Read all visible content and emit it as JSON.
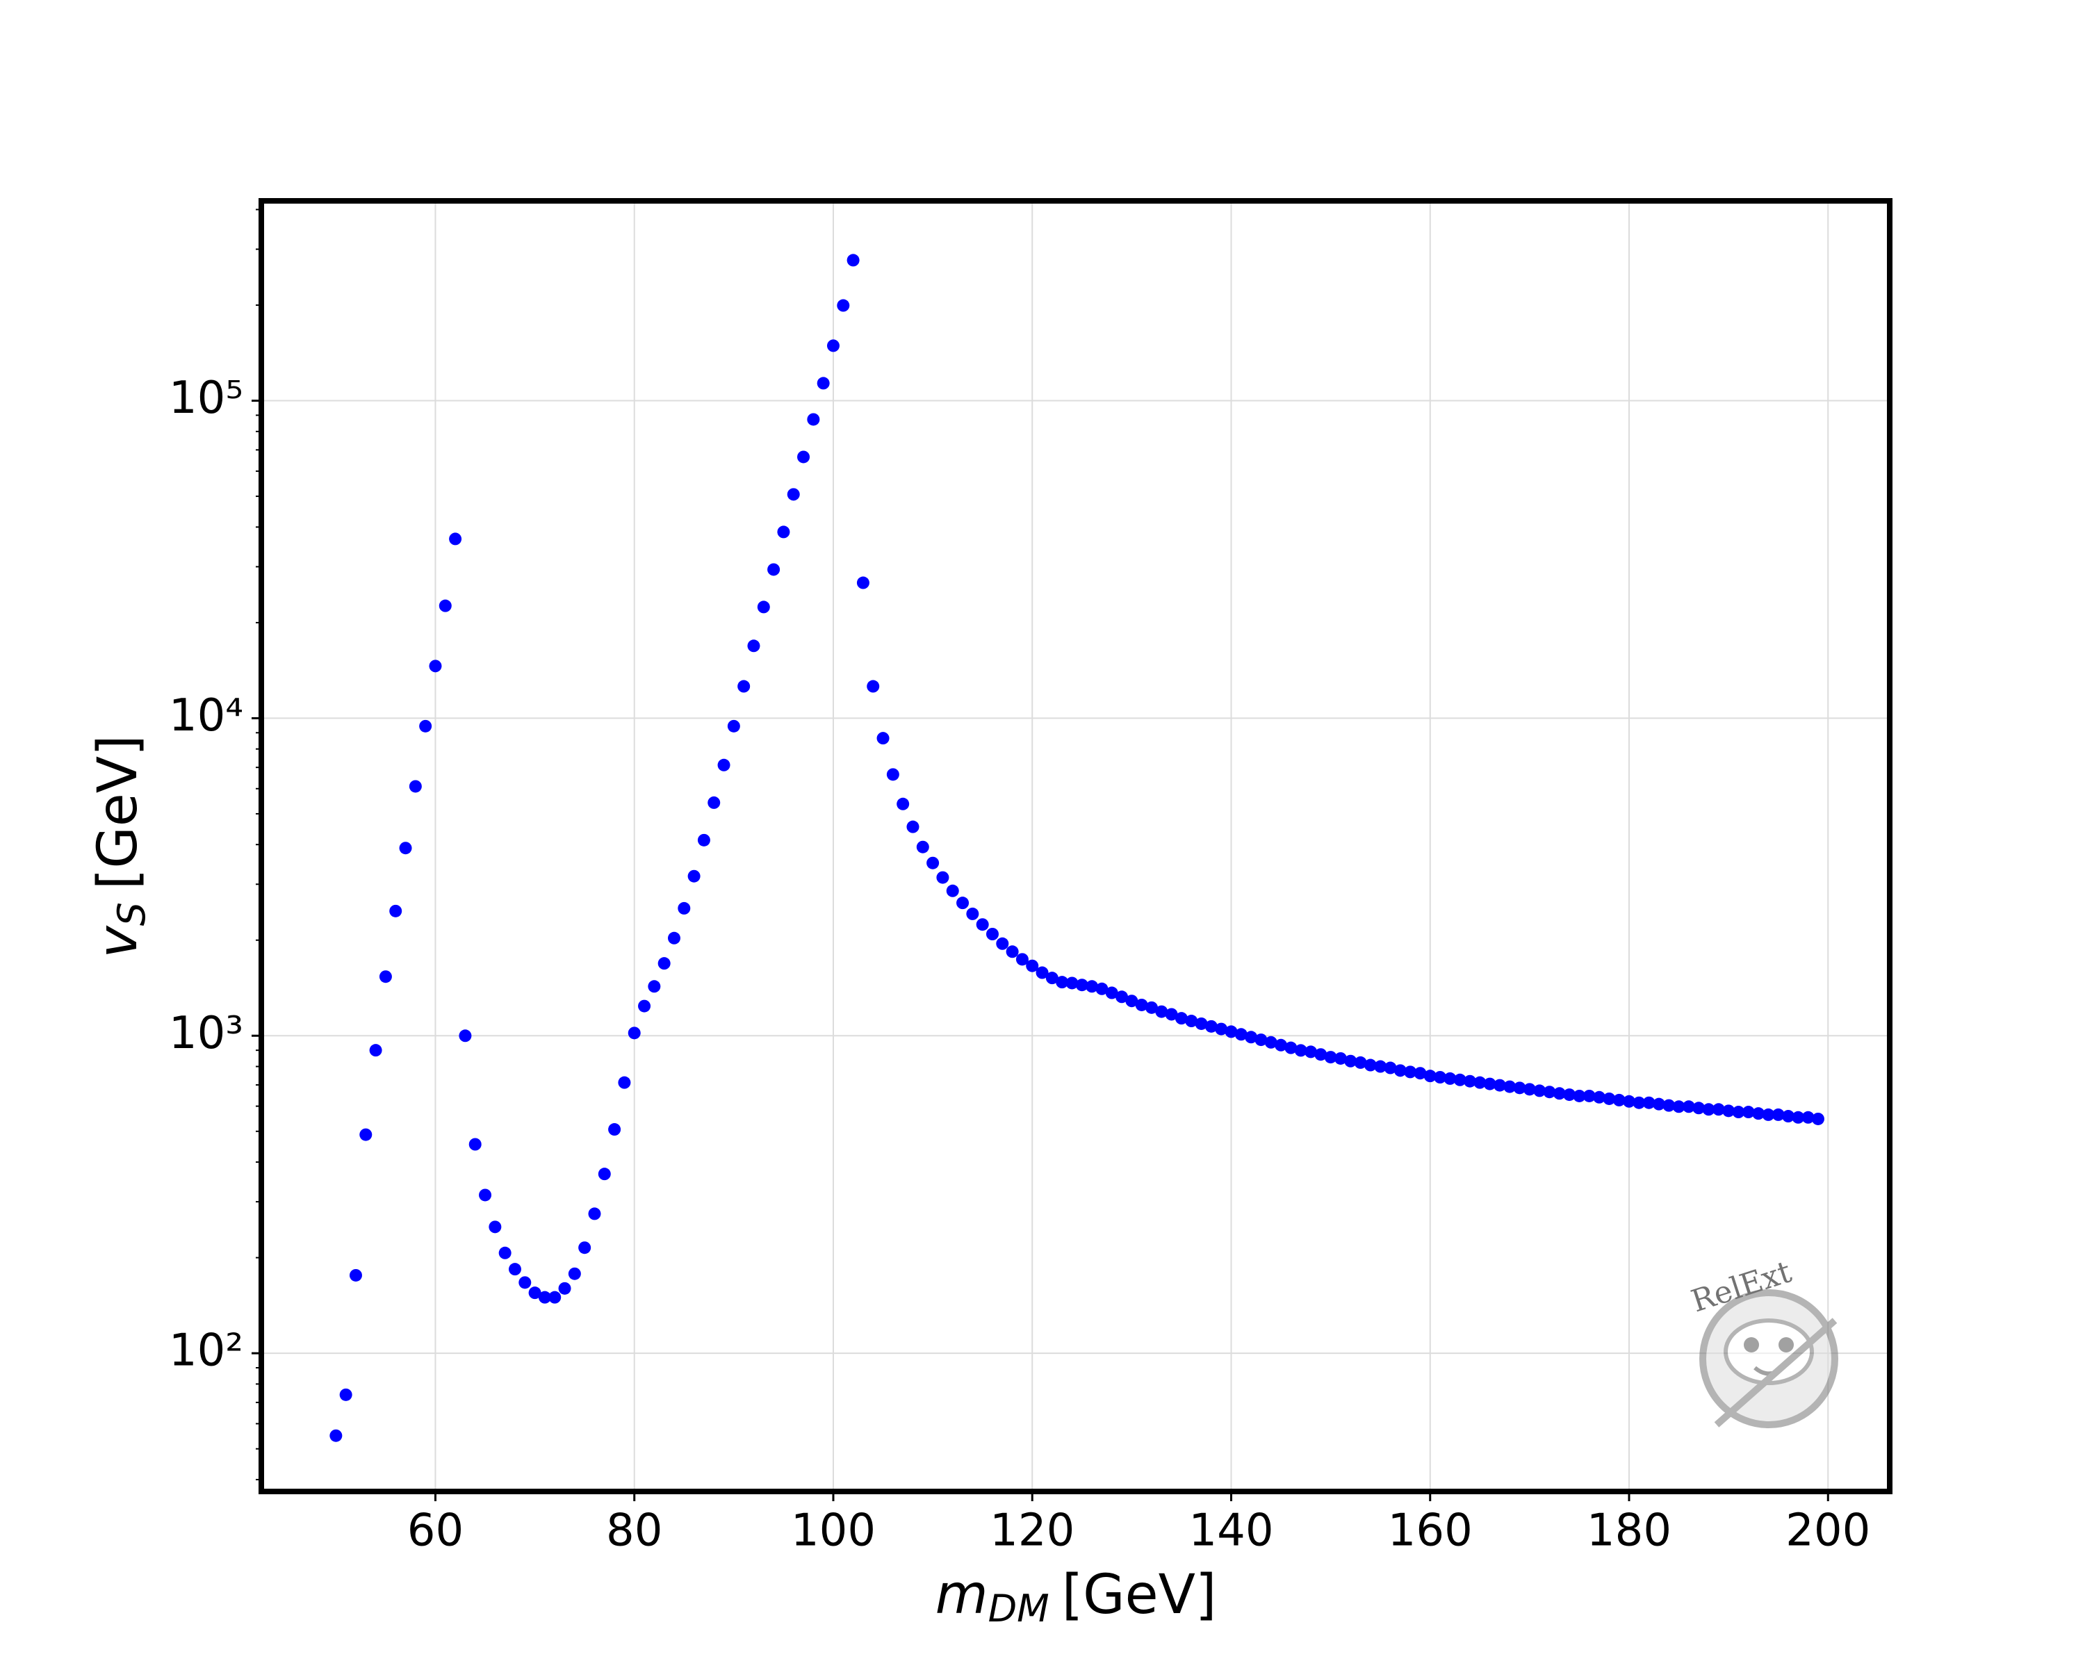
{
  "chart_data": {
    "type": "scatter",
    "x_label": {
      "symbol": "m",
      "subscript": "DM",
      "unit": "[GeV]"
    },
    "y_label": {
      "symbol": "v",
      "subscript": "S",
      "unit": "[GeV]"
    },
    "watermark": "RelExt",
    "color": "#0000ff",
    "log_y": true,
    "grid": true,
    "xlim": [
      42.5,
      206.2
    ],
    "ylim": [
      36.7,
      426000
    ],
    "xticks": [
      60,
      80,
      100,
      120,
      140,
      160,
      180,
      200
    ],
    "yticks": [
      {
        "value": 100,
        "label": "10²"
      },
      {
        "value": 1000,
        "label": "10³"
      },
      {
        "value": 10000,
        "label": "10⁴"
      },
      {
        "value": 100000,
        "label": "10⁵"
      }
    ],
    "x": [
      50,
      51,
      52,
      53,
      54,
      55,
      56,
      57,
      58,
      59,
      60,
      61,
      62,
      63,
      64,
      65,
      66,
      67,
      68,
      69,
      70,
      71,
      72,
      73,
      74,
      75,
      76,
      77,
      78,
      79,
      80,
      81,
      82,
      83,
      84,
      85,
      86,
      87,
      88,
      89,
      90,
      91,
      92,
      93,
      94,
      95,
      96,
      97,
      98,
      99,
      100,
      101,
      102,
      103,
      104,
      105,
      106,
      107,
      108,
      109,
      110,
      111,
      112,
      113,
      114,
      115,
      116,
      117,
      118,
      119,
      120,
      121,
      122,
      123,
      124,
      125,
      126,
      127,
      128,
      129,
      130,
      131,
      132,
      133,
      134,
      135,
      136,
      137,
      138,
      139,
      140,
      141,
      142,
      143,
      144,
      145,
      146,
      147,
      148,
      149,
      150,
      151,
      152,
      153,
      154,
      155,
      156,
      157,
      158,
      159,
      160,
      161,
      162,
      163,
      164,
      165,
      166,
      167,
      168,
      169,
      170,
      171,
      172,
      173,
      174,
      175,
      176,
      177,
      178,
      179,
      180,
      181,
      182,
      183,
      184,
      185,
      186,
      187,
      188,
      189,
      190,
      191,
      192,
      193,
      194,
      195,
      196,
      197,
      198,
      199
    ],
    "values": [
      55,
      74,
      176,
      488,
      900,
      1535,
      2470,
      3900,
      6100,
      9440,
      14600,
      22600,
      36700,
      1000,
      455,
      315,
      250,
      207,
      184,
      167,
      155,
      150,
      150,
      160,
      178,
      215,
      275,
      367,
      507,
      712,
      1020,
      1240,
      1430,
      1690,
      2030,
      2520,
      3180,
      4130,
      5420,
      7120,
      9440,
      12600,
      16900,
      22400,
      29400,
      38600,
      50700,
      66500,
      87300,
      113500,
      149000,
      199500,
      277000,
      26700,
      12600,
      8650,
      6650,
      5370,
      4550,
      3930,
      3500,
      3150,
      2860,
      2620,
      2420,
      2240,
      2090,
      1950,
      1840,
      1740,
      1660,
      1580,
      1520,
      1475,
      1465,
      1445,
      1430,
      1405,
      1365,
      1326,
      1287,
      1250,
      1226,
      1191,
      1168,
      1135,
      1113,
      1091,
      1070,
      1050,
      1030,
      1010,
      990,
      971,
      953,
      934,
      916,
      899,
      890,
      873,
      856,
      848,
      832,
      823,
      808,
      800,
      792,
      777,
      769,
      762,
      747,
      740,
      733,
      726,
      719,
      712,
      705,
      698,
      691,
      685,
      678,
      671,
      665,
      658,
      652,
      646,
      646,
      640,
      633,
      627,
      621,
      615,
      615,
      609,
      603,
      598,
      598,
      592,
      586,
      586,
      580,
      575,
      575,
      569,
      564,
      564,
      558,
      553,
      553,
      547
    ]
  }
}
